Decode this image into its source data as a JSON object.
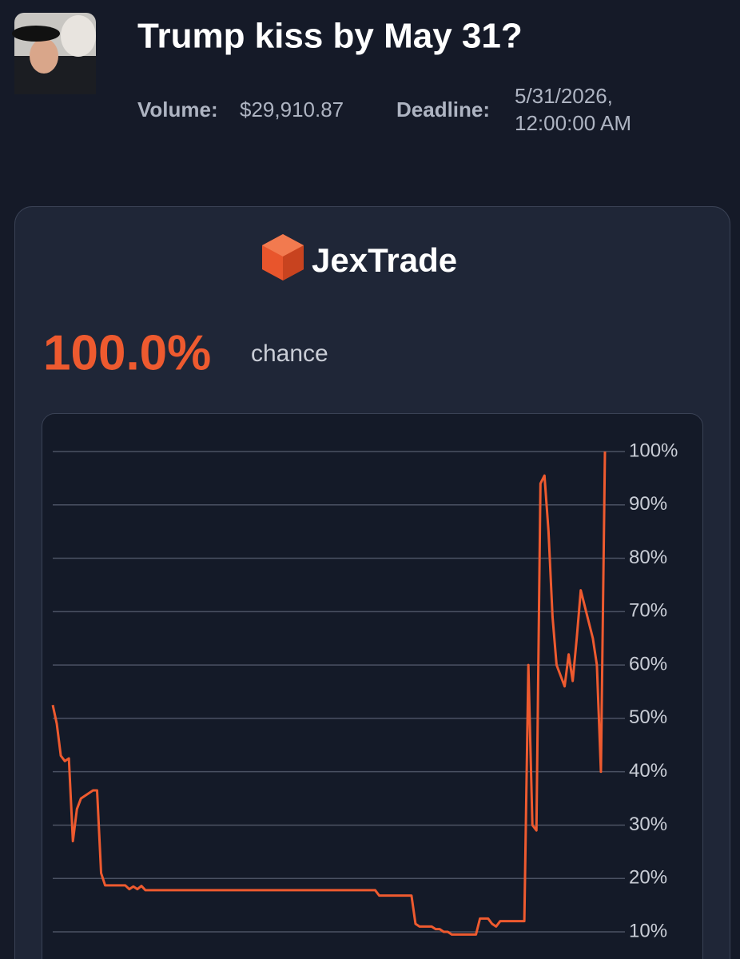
{
  "header": {
    "title": "Trump kiss by May 31?",
    "volume_label": "Volume:",
    "volume": "$29,910.87",
    "deadline_label": "Deadline:",
    "deadline": [
      "5/31/2026,",
      "12:00:00 AM"
    ]
  },
  "card": {
    "brand": "JexTrade",
    "probability": "100.0%",
    "probability_label": "chance"
  },
  "chart_data": {
    "type": "line",
    "series": [
      {
        "color": "#ee5a2f",
        "values": [
          52.5,
          49,
          43,
          42,
          42.5,
          27,
          33,
          35,
          35.5,
          36,
          36.5,
          36.5,
          21,
          18.7,
          18.7,
          18.7,
          18.7,
          18.7,
          18.7,
          18,
          18.5,
          18,
          18.6,
          17.8,
          17.8,
          17.8,
          17.8,
          17.8,
          17.8,
          17.8,
          17.8,
          17.8,
          17.8,
          17.8,
          17.8,
          17.8,
          17.8,
          17.8,
          17.8,
          17.8,
          17.8,
          17.8,
          17.8,
          17.8,
          17.8,
          17.8,
          17.8,
          17.8,
          17.8,
          17.8,
          17.8,
          17.8,
          17.8,
          17.8,
          17.8,
          17.8,
          17.8,
          17.8,
          17.8,
          17.8,
          17.8,
          17.8,
          17.8,
          17.8,
          17.8,
          17.8,
          17.8,
          17.8,
          17.8,
          17.8,
          17.8,
          17.8,
          17.8,
          17.8,
          17.8,
          17.8,
          17.8,
          17.8,
          17.8,
          17.8,
          17.8,
          16.8,
          16.8,
          16.8,
          16.8,
          16.8,
          16.8,
          16.8,
          16.8,
          16.8,
          11.5,
          11,
          11,
          11,
          11,
          10.5,
          10.5,
          10,
          10,
          9.5,
          9.5,
          9.5,
          9.5,
          9.5,
          9.5,
          9.5,
          12.5,
          12.5,
          12.5,
          11.5,
          11,
          12,
          12,
          12,
          12,
          12,
          12,
          12,
          60,
          30,
          29,
          94,
          95.5,
          85,
          69,
          60,
          58,
          56,
          62,
          57,
          65,
          74,
          71,
          68,
          65,
          60,
          40,
          100
        ]
      }
    ],
    "ylim": [
      5,
      100
    ],
    "yticks": [
      {
        "value": 10,
        "label": "10%"
      },
      {
        "value": 20,
        "label": "20%"
      },
      {
        "value": 30,
        "label": "30%"
      },
      {
        "value": 40,
        "label": "40%"
      },
      {
        "value": 50,
        "label": "50%"
      },
      {
        "value": 60,
        "label": "60%"
      },
      {
        "value": 70,
        "label": "70%"
      },
      {
        "value": 80,
        "label": "80%"
      },
      {
        "value": 90,
        "label": "90%"
      },
      {
        "value": 100,
        "label": "100%"
      }
    ],
    "grid": true
  }
}
